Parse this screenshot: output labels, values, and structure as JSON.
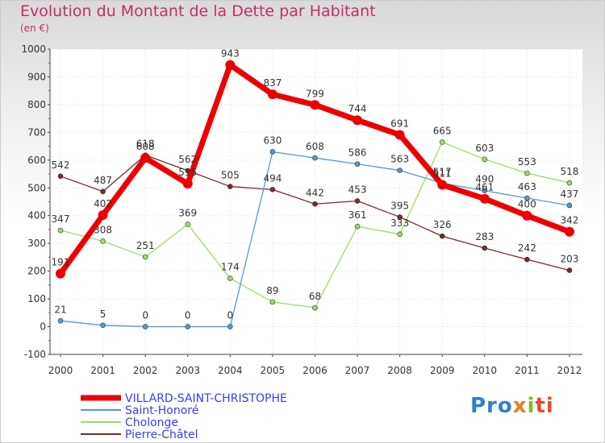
{
  "title": "Evolution du Montant de la Dette par Habitant",
  "unit_label": "(en €)",
  "logo": {
    "text": "Proxiti",
    "parts": [
      "Pro",
      "x",
      "i",
      "ti"
    ]
  },
  "chart_data": {
    "type": "line",
    "title": "Evolution du Montant de la Dette par Habitant",
    "ylabel": "(en €)",
    "xlabel": "",
    "ylim": [
      -100,
      1000
    ],
    "yticks": [
      -100,
      0,
      100,
      200,
      300,
      400,
      500,
      600,
      700,
      800,
      900,
      1000
    ],
    "grid": true,
    "legend_position": "bottom-left",
    "x": [
      "2000",
      "2001",
      "2002",
      "2003",
      "2004",
      "2005",
      "2006",
      "2007",
      "2008",
      "2009",
      "2010",
      "2011",
      "2012"
    ],
    "series": [
      {
        "name": "Cholonge",
        "color": "#99dd66",
        "values": [
          347,
          308,
          251,
          369,
          174,
          89,
          68,
          361,
          333,
          665,
          603,
          553,
          518
        ]
      },
      {
        "name": "Pierre-Châtel",
        "color": "#7a2a2a",
        "values": [
          542,
          487,
          618,
          562,
          505,
          494,
          442,
          453,
          395,
          326,
          283,
          242,
          203
        ]
      },
      {
        "name": "Saint-Honoré",
        "color": "#5599cc",
        "values": [
          21,
          5,
          0,
          0,
          0,
          630,
          608,
          586,
          563,
          517,
          490,
          463,
          437
        ]
      },
      {
        "name": "VILLARD-SAINT-CHRISTOPHE",
        "color": "#ee0000",
        "values": [
          191,
          402,
          608,
          515,
          943,
          837,
          799,
          744,
          691,
          511,
          461,
          400,
          342
        ]
      }
    ],
    "legend": [
      "VILLARD-SAINT-CHRISTOPHE",
      "Saint-Honoré",
      "Cholonge",
      "Pierre-Châtel"
    ]
  }
}
